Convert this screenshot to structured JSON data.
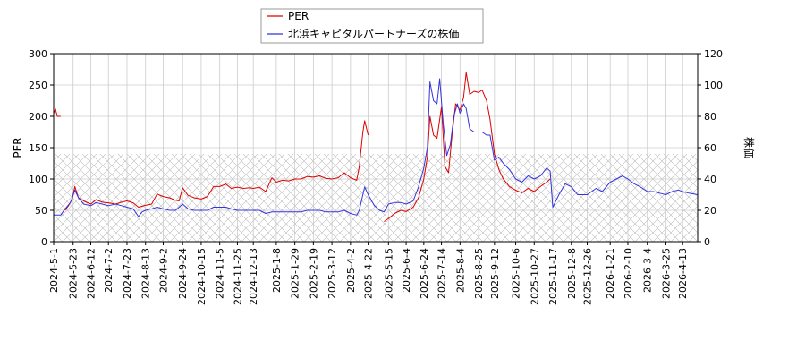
{
  "chart_data": {
    "type": "line",
    "xlabel": "",
    "ylabel_left": "PER",
    "ylabel_right": "株価",
    "ylim_left": [
      0,
      300
    ],
    "ylim_right": [
      0,
      120
    ],
    "yticks_left": [
      0,
      50,
      100,
      150,
      200,
      250,
      300
    ],
    "yticks_right": [
      0,
      20,
      40,
      60,
      80,
      100,
      120
    ],
    "x_range": [
      "2024-05-01",
      "2026-04-30"
    ],
    "x_ticks": [
      "2024-5-1",
      "2024-5-23",
      "2024-6-12",
      "2024-7-2",
      "2024-7-23",
      "2024-8-13",
      "2024-9-2",
      "2024-9-24",
      "2024-10-15",
      "2024-11-5",
      "2024-11-25",
      "2024-12-13",
      "2025-1-8",
      "2025-1-29",
      "2025-2-19",
      "2025-3-12",
      "2025-4-2",
      "2025-4-22",
      "2025-5-15",
      "2025-6-4",
      "2025-6-24",
      "2025-7-14",
      "2025-8-4",
      "2025-8-25",
      "2025-9-12",
      "2025-10-6",
      "2025-10-27",
      "2025-11-17",
      "2025-12-8",
      "2025-12-26",
      "2026-1-21",
      "2026-2-10",
      "2026-3-4",
      "2026-3-25",
      "2026-4-13"
    ],
    "grid": true,
    "legend_position": "top-center",
    "shaded_band_left": [
      0,
      140
    ],
    "series": [
      {
        "name": "PER",
        "axis": "left",
        "color": "#dd0000",
        "points": [
          [
            "2024-05-01",
            205
          ],
          [
            "2024-05-03",
            212
          ],
          [
            "2024-05-05",
            200
          ],
          [
            "2024-05-09",
            200
          ],
          [
            null,
            null
          ],
          [
            "2024-05-14",
            50
          ],
          [
            "2024-05-18",
            58
          ],
          [
            "2024-05-22",
            68
          ],
          [
            "2024-05-25",
            88
          ],
          [
            "2024-05-29",
            70
          ],
          [
            "2024-06-04",
            65
          ],
          [
            "2024-06-12",
            60
          ],
          [
            "2024-06-18",
            67
          ],
          [
            "2024-06-25",
            63
          ],
          [
            "2024-07-02",
            62
          ],
          [
            "2024-07-10",
            60
          ],
          [
            "2024-07-17",
            63
          ],
          [
            "2024-07-23",
            65
          ],
          [
            "2024-07-30",
            62
          ],
          [
            "2024-08-05",
            55
          ],
          [
            "2024-08-13",
            58
          ],
          [
            "2024-08-20",
            60
          ],
          [
            "2024-08-26",
            76
          ],
          [
            "2024-09-02",
            72
          ],
          [
            "2024-09-09",
            70
          ],
          [
            "2024-09-16",
            66
          ],
          [
            "2024-09-20",
            65
          ],
          [
            "2024-09-24",
            86
          ],
          [
            "2024-09-30",
            74
          ],
          [
            "2024-10-07",
            70
          ],
          [
            "2024-10-15",
            68
          ],
          [
            "2024-10-22",
            72
          ],
          [
            "2024-10-29",
            88
          ],
          [
            "2024-11-05",
            88
          ],
          [
            "2024-11-12",
            92
          ],
          [
            "2024-11-18",
            85
          ],
          [
            "2024-11-25",
            87
          ],
          [
            "2024-12-02",
            85
          ],
          [
            "2024-12-09",
            86
          ],
          [
            "2024-12-13",
            85
          ],
          [
            "2024-12-20",
            87
          ],
          [
            "2024-12-27",
            80
          ],
          [
            "2025-01-03",
            102
          ],
          [
            "2025-01-08",
            95
          ],
          [
            "2025-01-15",
            98
          ],
          [
            "2025-01-22",
            97
          ],
          [
            "2025-01-29",
            100
          ],
          [
            "2025-02-05",
            100
          ],
          [
            "2025-02-12",
            104
          ],
          [
            "2025-02-19",
            103
          ],
          [
            "2025-02-26",
            105
          ],
          [
            "2025-03-05",
            101
          ],
          [
            "2025-03-12",
            100
          ],
          [
            "2025-03-19",
            102
          ],
          [
            "2025-03-26",
            110
          ],
          [
            "2025-04-02",
            102
          ],
          [
            "2025-04-09",
            98
          ],
          [
            "2025-04-12",
            120
          ],
          [
            "2025-04-16",
            175
          ],
          [
            "2025-04-18",
            193
          ],
          [
            "2025-04-22",
            170
          ],
          [
            null,
            null
          ],
          [
            "2025-05-10",
            32
          ],
          [
            "2025-05-15",
            37
          ],
          [
            "2025-05-22",
            45
          ],
          [
            "2025-05-29",
            50
          ],
          [
            "2025-06-04",
            48
          ],
          [
            "2025-06-12",
            55
          ],
          [
            "2025-06-18",
            70
          ],
          [
            "2025-06-24",
            100
          ],
          [
            "2025-06-28",
            135
          ],
          [
            "2025-07-01",
            200
          ],
          [
            "2025-07-05",
            170
          ],
          [
            "2025-07-09",
            165
          ],
          [
            "2025-07-14",
            215
          ],
          [
            "2025-07-18",
            120
          ],
          [
            "2025-07-22",
            110
          ],
          [
            "2025-07-26",
            170
          ],
          [
            "2025-07-30",
            220
          ],
          [
            "2025-08-04",
            210
          ],
          [
            "2025-08-08",
            230
          ],
          [
            "2025-08-11",
            270
          ],
          [
            "2025-08-15",
            235
          ],
          [
            "2025-08-20",
            240
          ],
          [
            "2025-08-25",
            238
          ],
          [
            "2025-08-29",
            242
          ],
          [
            "2025-09-03",
            225
          ],
          [
            "2025-09-07",
            195
          ],
          [
            "2025-09-12",
            140
          ],
          [
            "2025-09-17",
            115
          ],
          [
            "2025-09-22",
            100
          ],
          [
            "2025-09-29",
            88
          ],
          [
            "2025-10-06",
            82
          ],
          [
            "2025-10-13",
            78
          ],
          [
            "2025-10-20",
            85
          ],
          [
            "2025-10-27",
            80
          ],
          [
            "2025-11-03",
            88
          ],
          [
            "2025-11-10",
            95
          ],
          [
            "2025-11-14",
            100
          ]
        ]
      },
      {
        "name": "北浜キャピタルパートナーズの株価",
        "axis": "right",
        "color": "#3333dd",
        "points": [
          [
            "2024-05-01",
            17
          ],
          [
            "2024-05-09",
            17
          ],
          [
            "2024-05-14",
            21
          ],
          [
            "2024-05-20",
            25
          ],
          [
            "2024-05-25",
            33
          ],
          [
            "2024-05-29",
            28
          ],
          [
            "2024-06-04",
            24
          ],
          [
            "2024-06-12",
            23
          ],
          [
            "2024-06-18",
            25
          ],
          [
            "2024-06-25",
            24
          ],
          [
            "2024-07-02",
            23
          ],
          [
            "2024-07-10",
            24
          ],
          [
            "2024-07-17",
            23
          ],
          [
            "2024-07-23",
            22
          ],
          [
            "2024-07-30",
            21
          ],
          [
            "2024-08-05",
            16
          ],
          [
            "2024-08-09",
            19
          ],
          [
            "2024-08-13",
            20
          ],
          [
            "2024-08-20",
            21
          ],
          [
            "2024-08-26",
            22
          ],
          [
            "2024-09-02",
            21
          ],
          [
            "2024-09-09",
            20
          ],
          [
            "2024-09-16",
            20
          ],
          [
            "2024-09-24",
            24
          ],
          [
            "2024-09-30",
            21
          ],
          [
            "2024-10-07",
            20
          ],
          [
            "2024-10-15",
            20
          ],
          [
            "2024-10-22",
            20
          ],
          [
            "2024-10-29",
            22
          ],
          [
            "2024-11-05",
            22
          ],
          [
            "2024-11-12",
            22
          ],
          [
            "2024-11-18",
            21
          ],
          [
            "2024-11-25",
            20
          ],
          [
            "2024-12-02",
            20
          ],
          [
            "2024-12-09",
            20
          ],
          [
            "2024-12-13",
            20
          ],
          [
            "2024-12-20",
            20
          ],
          [
            "2024-12-27",
            18
          ],
          [
            "2025-01-03",
            19
          ],
          [
            "2025-01-08",
            19
          ],
          [
            "2025-01-15",
            19
          ],
          [
            "2025-01-22",
            19
          ],
          [
            "2025-01-29",
            19
          ],
          [
            "2025-02-05",
            19
          ],
          [
            "2025-02-12",
            20
          ],
          [
            "2025-02-19",
            20
          ],
          [
            "2025-02-26",
            20
          ],
          [
            "2025-03-05",
            19
          ],
          [
            "2025-03-12",
            19
          ],
          [
            "2025-03-19",
            19
          ],
          [
            "2025-03-26",
            20
          ],
          [
            "2025-04-02",
            18
          ],
          [
            "2025-04-09",
            17
          ],
          [
            "2025-04-12",
            20
          ],
          [
            "2025-04-16",
            30
          ],
          [
            "2025-04-18",
            35
          ],
          [
            "2025-04-22",
            30
          ],
          [
            "2025-04-29",
            23
          ],
          [
            "2025-05-05",
            20
          ],
          [
            "2025-05-10",
            19
          ],
          [
            "2025-05-15",
            24
          ],
          [
            "2025-05-22",
            25
          ],
          [
            "2025-05-29",
            25
          ],
          [
            "2025-06-04",
            24
          ],
          [
            "2025-06-12",
            26
          ],
          [
            "2025-06-18",
            35
          ],
          [
            "2025-06-24",
            47
          ],
          [
            "2025-06-28",
            60
          ],
          [
            "2025-07-01",
            102
          ],
          [
            "2025-07-05",
            90
          ],
          [
            "2025-07-09",
            88
          ],
          [
            "2025-07-12",
            104
          ],
          [
            "2025-07-16",
            75
          ],
          [
            "2025-07-20",
            55
          ],
          [
            "2025-07-24",
            62
          ],
          [
            "2025-07-28",
            80
          ],
          [
            "2025-08-01",
            88
          ],
          [
            "2025-08-04",
            82
          ],
          [
            "2025-08-08",
            88
          ],
          [
            "2025-08-11",
            85
          ],
          [
            "2025-08-15",
            72
          ],
          [
            "2025-08-20",
            70
          ],
          [
            "2025-08-25",
            70
          ],
          [
            "2025-08-29",
            70
          ],
          [
            "2025-09-03",
            68
          ],
          [
            "2025-09-07",
            68
          ],
          [
            "2025-09-12",
            52
          ],
          [
            "2025-09-17",
            54
          ],
          [
            "2025-09-22",
            50
          ],
          [
            "2025-09-29",
            46
          ],
          [
            "2025-10-06",
            40
          ],
          [
            "2025-10-13",
            38
          ],
          [
            "2025-10-20",
            42
          ],
          [
            "2025-10-27",
            40
          ],
          [
            "2025-11-03",
            42
          ],
          [
            "2025-11-10",
            47
          ],
          [
            "2025-11-14",
            45
          ],
          [
            "2025-11-17",
            22
          ],
          [
            "2025-11-24",
            30
          ],
          [
            "2025-12-01",
            37
          ],
          [
            "2025-12-08",
            35
          ],
          [
            "2025-12-15",
            30
          ],
          [
            "2025-12-22",
            30
          ],
          [
            "2025-12-26",
            30
          ],
          [
            "2026-01-05",
            34
          ],
          [
            "2026-01-12",
            32
          ],
          [
            "2026-01-21",
            38
          ],
          [
            "2026-01-28",
            40
          ],
          [
            "2026-02-04",
            42
          ],
          [
            "2026-02-10",
            40
          ],
          [
            "2026-02-17",
            37
          ],
          [
            "2026-02-24",
            35
          ],
          [
            "2026-03-04",
            32
          ],
          [
            "2026-03-11",
            32
          ],
          [
            "2026-03-18",
            31
          ],
          [
            "2026-03-25",
            30
          ],
          [
            "2026-04-01",
            32
          ],
          [
            "2026-04-08",
            33
          ],
          [
            "2026-04-13",
            32
          ],
          [
            "2026-04-20",
            31
          ],
          [
            "2026-04-30",
            30
          ]
        ]
      }
    ]
  }
}
